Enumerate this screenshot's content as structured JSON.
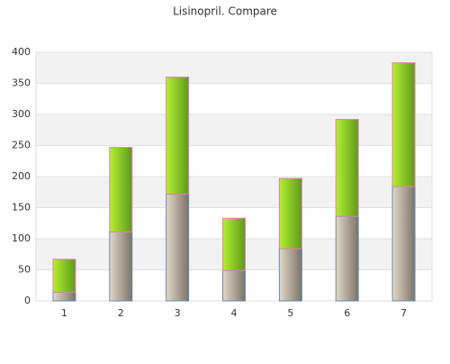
{
  "chart_data": {
    "type": "stacked_bar",
    "title": "Lisinopril. Compare",
    "categories": [
      "1",
      "2",
      "3",
      "4",
      "5",
      "6",
      "7"
    ],
    "series": [
      {
        "color": "#a09888",
        "values": [
          14,
          111,
          172,
          49,
          84,
          136,
          184
        ]
      },
      {
        "color": "#8ccc20",
        "values": [
          53,
          136,
          188,
          84,
          113,
          156,
          199
        ]
      }
    ],
    "ylim": [
      0,
      400
    ],
    "yticks": [
      0,
      50,
      100,
      150,
      200,
      250,
      300,
      350,
      400
    ],
    "grid": true
  }
}
